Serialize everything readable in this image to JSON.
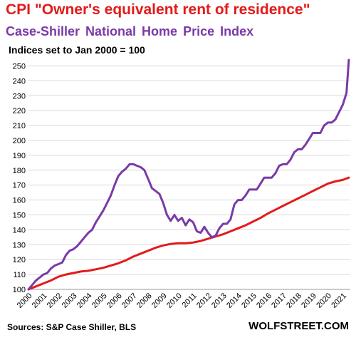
{
  "titles": {
    "line1": "CPI \"Owner's equivalent rent of residence\"",
    "line2": "Case-Shiller National Home Price Index",
    "line3": "Indices set to Jan 2000 = 100"
  },
  "footer": {
    "source": "Sources: S&P Case Shiller, BLS",
    "brand": "WOLFSTREET.COM"
  },
  "colors": {
    "oer": "#e31b1b",
    "case_shiller": "#7a3aa6",
    "grid": "#d9d9d9"
  },
  "chart_data": {
    "type": "line",
    "title": "CPI \"Owner's equivalent rent of residence\"",
    "subtitle": "Case-Shiller National Home Price Index",
    "ylabel": "Indices set to Jan 2000 = 100",
    "xlim": [
      2000,
      2021.5
    ],
    "ylim": [
      100,
      255
    ],
    "y_ticks": [
      100,
      110,
      120,
      130,
      140,
      150,
      160,
      170,
      180,
      190,
      200,
      210,
      220,
      230,
      240,
      250
    ],
    "x_ticks": [
      "2000",
      "2001",
      "2002",
      "2003",
      "2004",
      "2005",
      "2006",
      "2007",
      "2008",
      "2009",
      "2010",
      "2011",
      "2012",
      "2013",
      "2014",
      "2015",
      "2016",
      "2017",
      "2018",
      "2019",
      "2020",
      "2021"
    ],
    "grid": "horizontal",
    "series": [
      {
        "name": "CPI \"Owner's equivalent rent of residence\"",
        "color": "#e31b1b",
        "x": [
          2000,
          2000.5,
          2001,
          2001.5,
          2002,
          2002.5,
          2003,
          2003.5,
          2004,
          2004.5,
          2005,
          2005.5,
          2006,
          2006.5,
          2007,
          2007.5,
          2008,
          2008.5,
          2009,
          2009.5,
          2010,
          2010.5,
          2011,
          2011.5,
          2012,
          2012.5,
          2013,
          2013.5,
          2014,
          2014.5,
          2015,
          2015.5,
          2016,
          2016.5,
          2017,
          2017.5,
          2018,
          2018.5,
          2019,
          2019.5,
          2020,
          2020.5,
          2021,
          2021.4
        ],
        "y": [
          100,
          102,
          104,
          106,
          108.5,
          110,
          111,
          112,
          112.5,
          113.5,
          114.5,
          116,
          117.5,
          119.5,
          122,
          124,
          126,
          128,
          129.5,
          130.5,
          131,
          131,
          131.5,
          132.5,
          134,
          135.5,
          137,
          139,
          141,
          143,
          145.5,
          148,
          151,
          153.5,
          156,
          158.5,
          161,
          163.5,
          166,
          168.5,
          171,
          172.5,
          173.5,
          175
        ]
      },
      {
        "name": "Case-Shiller National Home Price Index",
        "color": "#7a3aa6",
        "x": [
          2000,
          2000.25,
          2000.5,
          2000.75,
          2001,
          2001.25,
          2001.5,
          2001.75,
          2002,
          2002.25,
          2002.5,
          2002.75,
          2003,
          2003.25,
          2003.5,
          2003.75,
          2004,
          2004.25,
          2004.5,
          2004.75,
          2005,
          2005.25,
          2005.5,
          2005.75,
          2006,
          2006.25,
          2006.5,
          2006.75,
          2007,
          2007.25,
          2007.5,
          2007.75,
          2008,
          2008.25,
          2008.5,
          2008.75,
          2009,
          2009.25,
          2009.5,
          2009.75,
          2010,
          2010.25,
          2010.5,
          2010.75,
          2011,
          2011.25,
          2011.5,
          2011.75,
          2012,
          2012.25,
          2012.5,
          2012.75,
          2013,
          2013.25,
          2013.5,
          2013.75,
          2014,
          2014.25,
          2014.5,
          2014.75,
          2015,
          2015.25,
          2015.5,
          2015.75,
          2016,
          2016.25,
          2016.5,
          2016.75,
          2017,
          2017.25,
          2017.5,
          2017.75,
          2018,
          2018.25,
          2018.5,
          2018.75,
          2019,
          2019.25,
          2019.5,
          2019.75,
          2020,
          2020.25,
          2020.5,
          2020.75,
          2021,
          2021.25,
          2021.4
        ],
        "y": [
          100,
          103,
          106,
          108,
          110,
          111,
          114,
          116,
          117,
          118,
          123,
          126,
          127,
          129,
          132,
          135,
          138,
          140,
          145,
          149,
          153,
          158,
          163,
          170,
          176,
          179,
          181,
          184,
          184,
          183,
          182,
          180,
          174,
          168,
          166,
          164,
          158,
          150,
          146,
          150,
          146,
          148,
          143,
          147,
          145,
          139,
          138,
          142,
          138,
          135,
          136,
          141,
          144,
          144,
          147,
          157,
          160,
          160,
          163,
          167,
          167,
          167,
          171,
          175,
          175,
          175,
          178,
          183,
          184,
          184,
          187,
          192,
          194,
          194,
          197,
          201,
          205,
          205,
          205,
          210,
          212,
          212,
          214,
          219,
          224,
          232,
          254
        ]
      }
    ]
  }
}
